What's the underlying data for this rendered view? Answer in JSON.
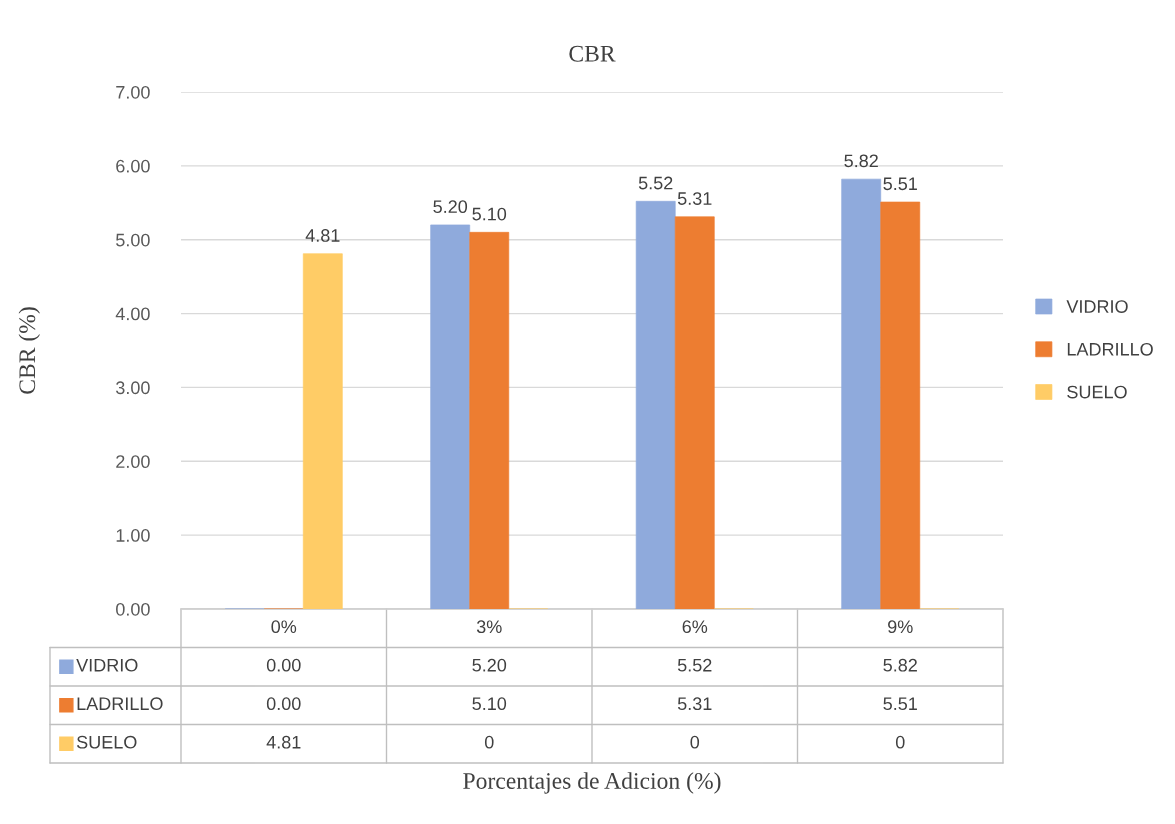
{
  "chart_data": {
    "type": "bar",
    "title": "CBR",
    "annotations": [
      "Porcentajes de Adicion (%)"
    ],
    "ylabel": "CBR (%)",
    "categories": [
      "0%",
      "3%",
      "6%",
      "9%"
    ],
    "series": [
      {
        "name": "VIDRIO",
        "color": "#8faadc",
        "values": [
          0.0,
          5.2,
          5.52,
          5.82
        ],
        "value_labels": [
          "0.00",
          "5.20",
          "5.52",
          "5.82"
        ]
      },
      {
        "name": "LADRILLO",
        "color": "#ed7d31",
        "values": [
          0.0,
          5.1,
          5.31,
          5.51
        ],
        "value_labels": [
          "0.00",
          "5.10",
          "5.31",
          "5.51"
        ]
      },
      {
        "name": "SUELO",
        "color": "#ffcc66",
        "values": [
          4.81,
          0,
          0,
          0
        ],
        "value_labels": [
          "4.81",
          "0",
          "0",
          "0"
        ]
      }
    ],
    "ylim": [
      0,
      7
    ],
    "yticks": [
      {
        "value": 0,
        "label": "0.00"
      },
      {
        "value": 1,
        "label": "1.00"
      },
      {
        "value": 2,
        "label": "2.00"
      },
      {
        "value": 3,
        "label": "3.00"
      },
      {
        "value": 4,
        "label": "4.00"
      },
      {
        "value": 5,
        "label": "5.00"
      },
      {
        "value": 6,
        "label": "6.00"
      },
      {
        "value": 7,
        "label": "7.00"
      }
    ],
    "grid": "y",
    "legend": "right"
  }
}
